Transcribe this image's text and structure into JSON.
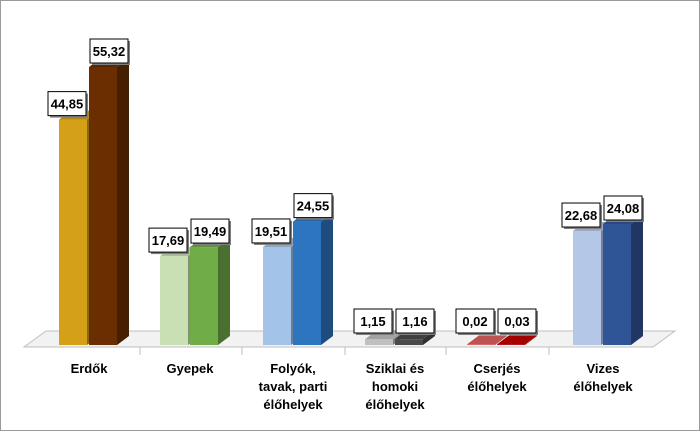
{
  "chart_data": {
    "type": "bar",
    "categories": [
      [
        "Erdők"
      ],
      [
        "Gyepek"
      ],
      [
        "Folyók,",
        "tavak, parti",
        "élőhelyek"
      ],
      [
        "Sziklai és",
        "homoki",
        "élőhelyek"
      ],
      [
        "Cserjés",
        "élőhelyek"
      ],
      [
        "Vizes",
        "élőhelyek"
      ]
    ],
    "series": [
      {
        "values": [
          44.85,
          17.69,
          19.51,
          1.15,
          0.02,
          22.68
        ]
      },
      {
        "values": [
          55.32,
          19.49,
          24.55,
          1.16,
          0.03,
          24.08
        ]
      }
    ],
    "data_labels": [
      [
        "44,85",
        "17,69",
        "19,51",
        "1,15",
        "0,02",
        "22,68"
      ],
      [
        "55,32",
        "19,49",
        "24,55",
        "1,16",
        "0,03",
        "24,08"
      ]
    ],
    "colors": [
      [
        "#d4a017",
        "#c9e0b4",
        "#a3c4e8",
        "#c0c0c0",
        "#e06060",
        "#b4c7e7"
      ],
      [
        "#6b2e00",
        "#70ad47",
        "#2e75c0",
        "#4a4a4a",
        "#c00000",
        "#2f5597"
      ]
    ],
    "ylim": [
      0,
      60
    ],
    "grid": false,
    "legend": "none",
    "three_d": true
  }
}
